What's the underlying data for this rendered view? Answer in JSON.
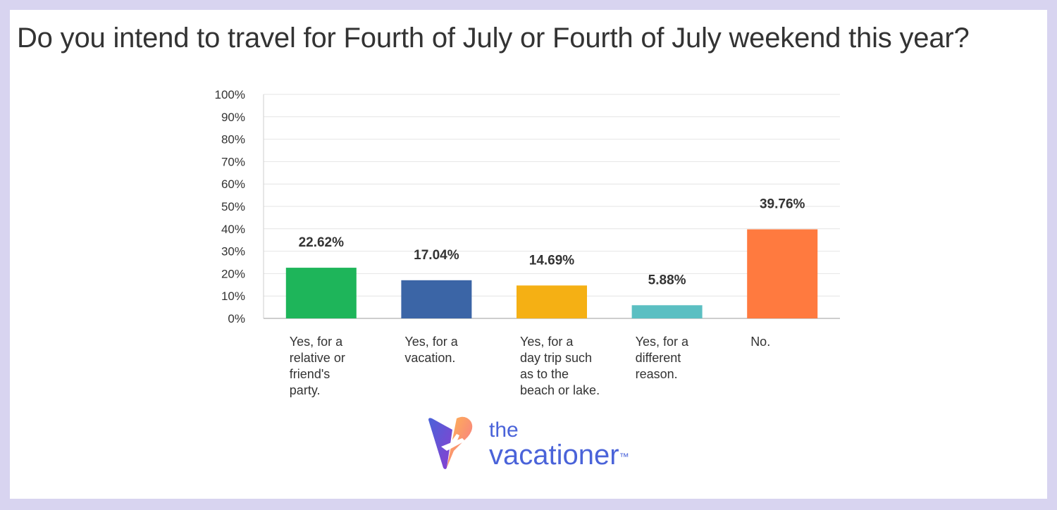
{
  "chart_data": {
    "type": "bar",
    "title": "Do you intend to travel for Fourth of July or Fourth of July weekend this year?",
    "categories": [
      [
        "Yes, for a",
        "relative or",
        "friend's",
        "party."
      ],
      [
        "Yes, for a",
        "vacation."
      ],
      [
        "Yes, for a",
        "day trip such",
        "as to the",
        "beach or lake."
      ],
      [
        "Yes, for a",
        "different",
        "reason."
      ],
      [
        "No."
      ]
    ],
    "values": [
      22.62,
      17.04,
      14.69,
      5.88,
      39.76
    ],
    "value_labels": [
      "22.62%",
      "17.04%",
      "14.69%",
      "5.88%",
      "39.76%"
    ],
    "colors": [
      "#1eb55a",
      "#3b65a6",
      "#f5b014",
      "#5bbfc2",
      "#ff7a3f"
    ],
    "ylim": [
      0,
      100
    ],
    "yticks": [
      "0%",
      "10%",
      "20%",
      "30%",
      "40%",
      "50%",
      "60%",
      "70%",
      "80%",
      "90%",
      "100%"
    ],
    "grid": true,
    "xlabel": "",
    "ylabel": ""
  },
  "logo": {
    "line1": "the",
    "line2": "vacationer",
    "mark": "™"
  }
}
